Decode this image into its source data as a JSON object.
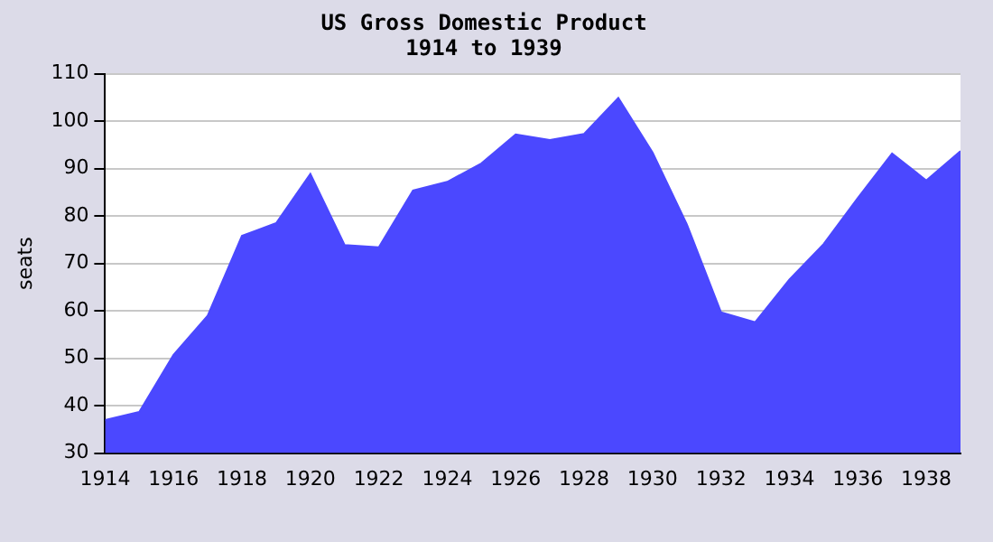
{
  "chart_data": {
    "type": "area",
    "title": "US Gross Domestic Product",
    "subtitle": "1914 to 1939",
    "ylabel": "seats",
    "x": [
      1914,
      1915,
      1916,
      1917,
      1918,
      1919,
      1920,
      1921,
      1922,
      1923,
      1924,
      1925,
      1926,
      1927,
      1928,
      1929,
      1930,
      1931,
      1932,
      1933,
      1934,
      1935,
      1936,
      1937,
      1938,
      1939
    ],
    "series": [
      {
        "color": "#4b48ff",
        "values": [
          37,
          38.7,
          50.7,
          59,
          75.8,
          78.5,
          88.9,
          73.9,
          73.4,
          85.4,
          87.2,
          91.1,
          97.2,
          96,
          97.3,
          104.9,
          93.4,
          78.3,
          59.7,
          57.6,
          66.6,
          74.1,
          83.8,
          93.2,
          87.5,
          93.7
        ]
      }
    ],
    "xlim": [
      1914,
      1939
    ],
    "xticks": [
      1914,
      1916,
      1918,
      1920,
      1922,
      1924,
      1926,
      1928,
      1930,
      1932,
      1934,
      1936,
      1938
    ],
    "ylim": [
      30,
      110
    ],
    "yticks": [
      30,
      40,
      50,
      60,
      70,
      80,
      90,
      100,
      110
    ],
    "grid": "y",
    "legend": false,
    "marker": "none"
  }
}
